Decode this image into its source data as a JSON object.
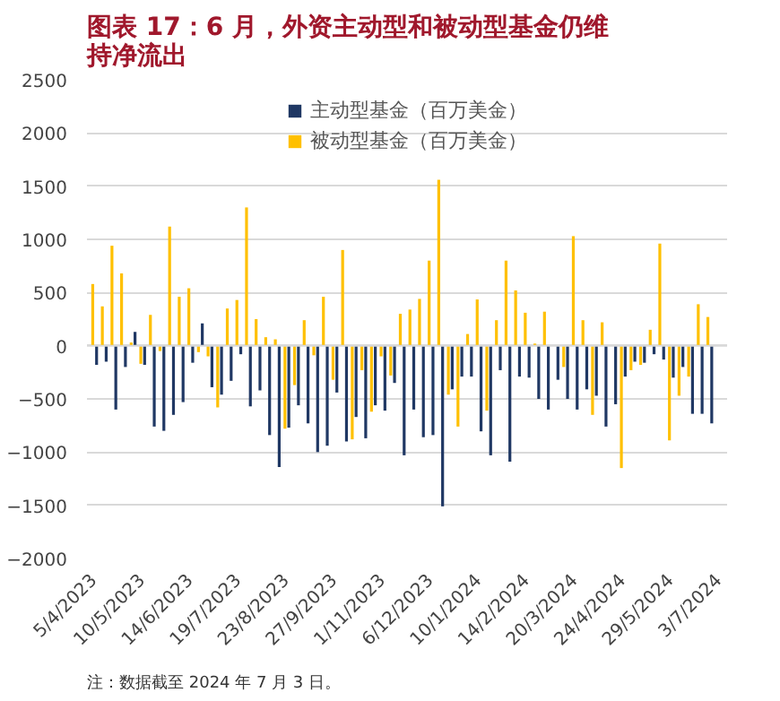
{
  "chart_data": {
    "type": "bar",
    "title": "图表 17：6 月，外资主动型和被动型基金仍维持净流出",
    "categories": [
      "5/4/2023",
      null,
      null,
      null,
      null,
      "10/5/2023",
      null,
      null,
      null,
      null,
      "14/6/2023",
      null,
      null,
      null,
      null,
      "19/7/2023",
      null,
      null,
      null,
      null,
      "23/8/2023",
      null,
      null,
      null,
      null,
      "27/9/2023",
      null,
      null,
      null,
      null,
      "1/11/2023",
      null,
      null,
      null,
      null,
      "6/12/2023",
      null,
      null,
      null,
      null,
      "10/1/2024",
      null,
      null,
      null,
      null,
      "14/2/2024",
      null,
      null,
      null,
      null,
      "20/3/2024",
      null,
      null,
      null,
      null,
      "24/4/2024",
      null,
      null,
      null,
      null,
      "29/5/2024",
      null,
      null,
      null,
      null,
      "3/7/2024"
    ],
    "series": [
      {
        "name": "主动型基金（百万美金）",
        "color": "#203864",
        "values": [
          -180,
          -150,
          -600,
          -200,
          130,
          -180,
          -760,
          -800,
          -650,
          -530,
          -160,
          210,
          -390,
          -460,
          -330,
          -80,
          -570,
          -420,
          -840,
          -1140,
          -770,
          -560,
          -730,
          -1000,
          -940,
          -440,
          -900,
          -670,
          -870,
          -560,
          -610,
          -350,
          -1030,
          -600,
          -860,
          -840,
          -1510,
          -410,
          -290,
          -290,
          -805,
          -1030,
          -230,
          -1090,
          -290,
          -300,
          -500,
          -600,
          -320,
          -500,
          -600,
          -410,
          -470,
          -760,
          -550,
          -290,
          -150,
          -160,
          -80,
          -130,
          -300,
          -200,
          -640,
          -640,
          -730,
          null
        ]
      },
      {
        "name": "被动型基金（百万美金）",
        "color": "#ffc000",
        "values": [
          580,
          370,
          940,
          680,
          30,
          -170,
          290,
          -50,
          1120,
          460,
          540,
          -60,
          -100,
          -580,
          350,
          430,
          1300,
          250,
          80,
          60,
          -780,
          -370,
          240,
          -90,
          460,
          -320,
          900,
          -880,
          -230,
          -620,
          -100,
          -280,
          300,
          340,
          440,
          800,
          1560,
          -460,
          -760,
          110,
          435,
          -610,
          240,
          800,
          520,
          310,
          20,
          320,
          null,
          -200,
          1030,
          240,
          -650,
          220,
          null,
          -1150,
          -230,
          -180,
          150,
          960,
          -890,
          -470,
          -290,
          390,
          270,
          null
        ]
      }
    ],
    "ylim": [
      -2000,
      2500
    ],
    "yticks": [
      -2000,
      -1500,
      -1000,
      -500,
      0,
      500,
      1000,
      1500,
      2000,
      2500
    ],
    "grid": "y",
    "legend": "top",
    "annotations": [
      "注：数据截至 2024 年 7 月 3 日。"
    ]
  }
}
